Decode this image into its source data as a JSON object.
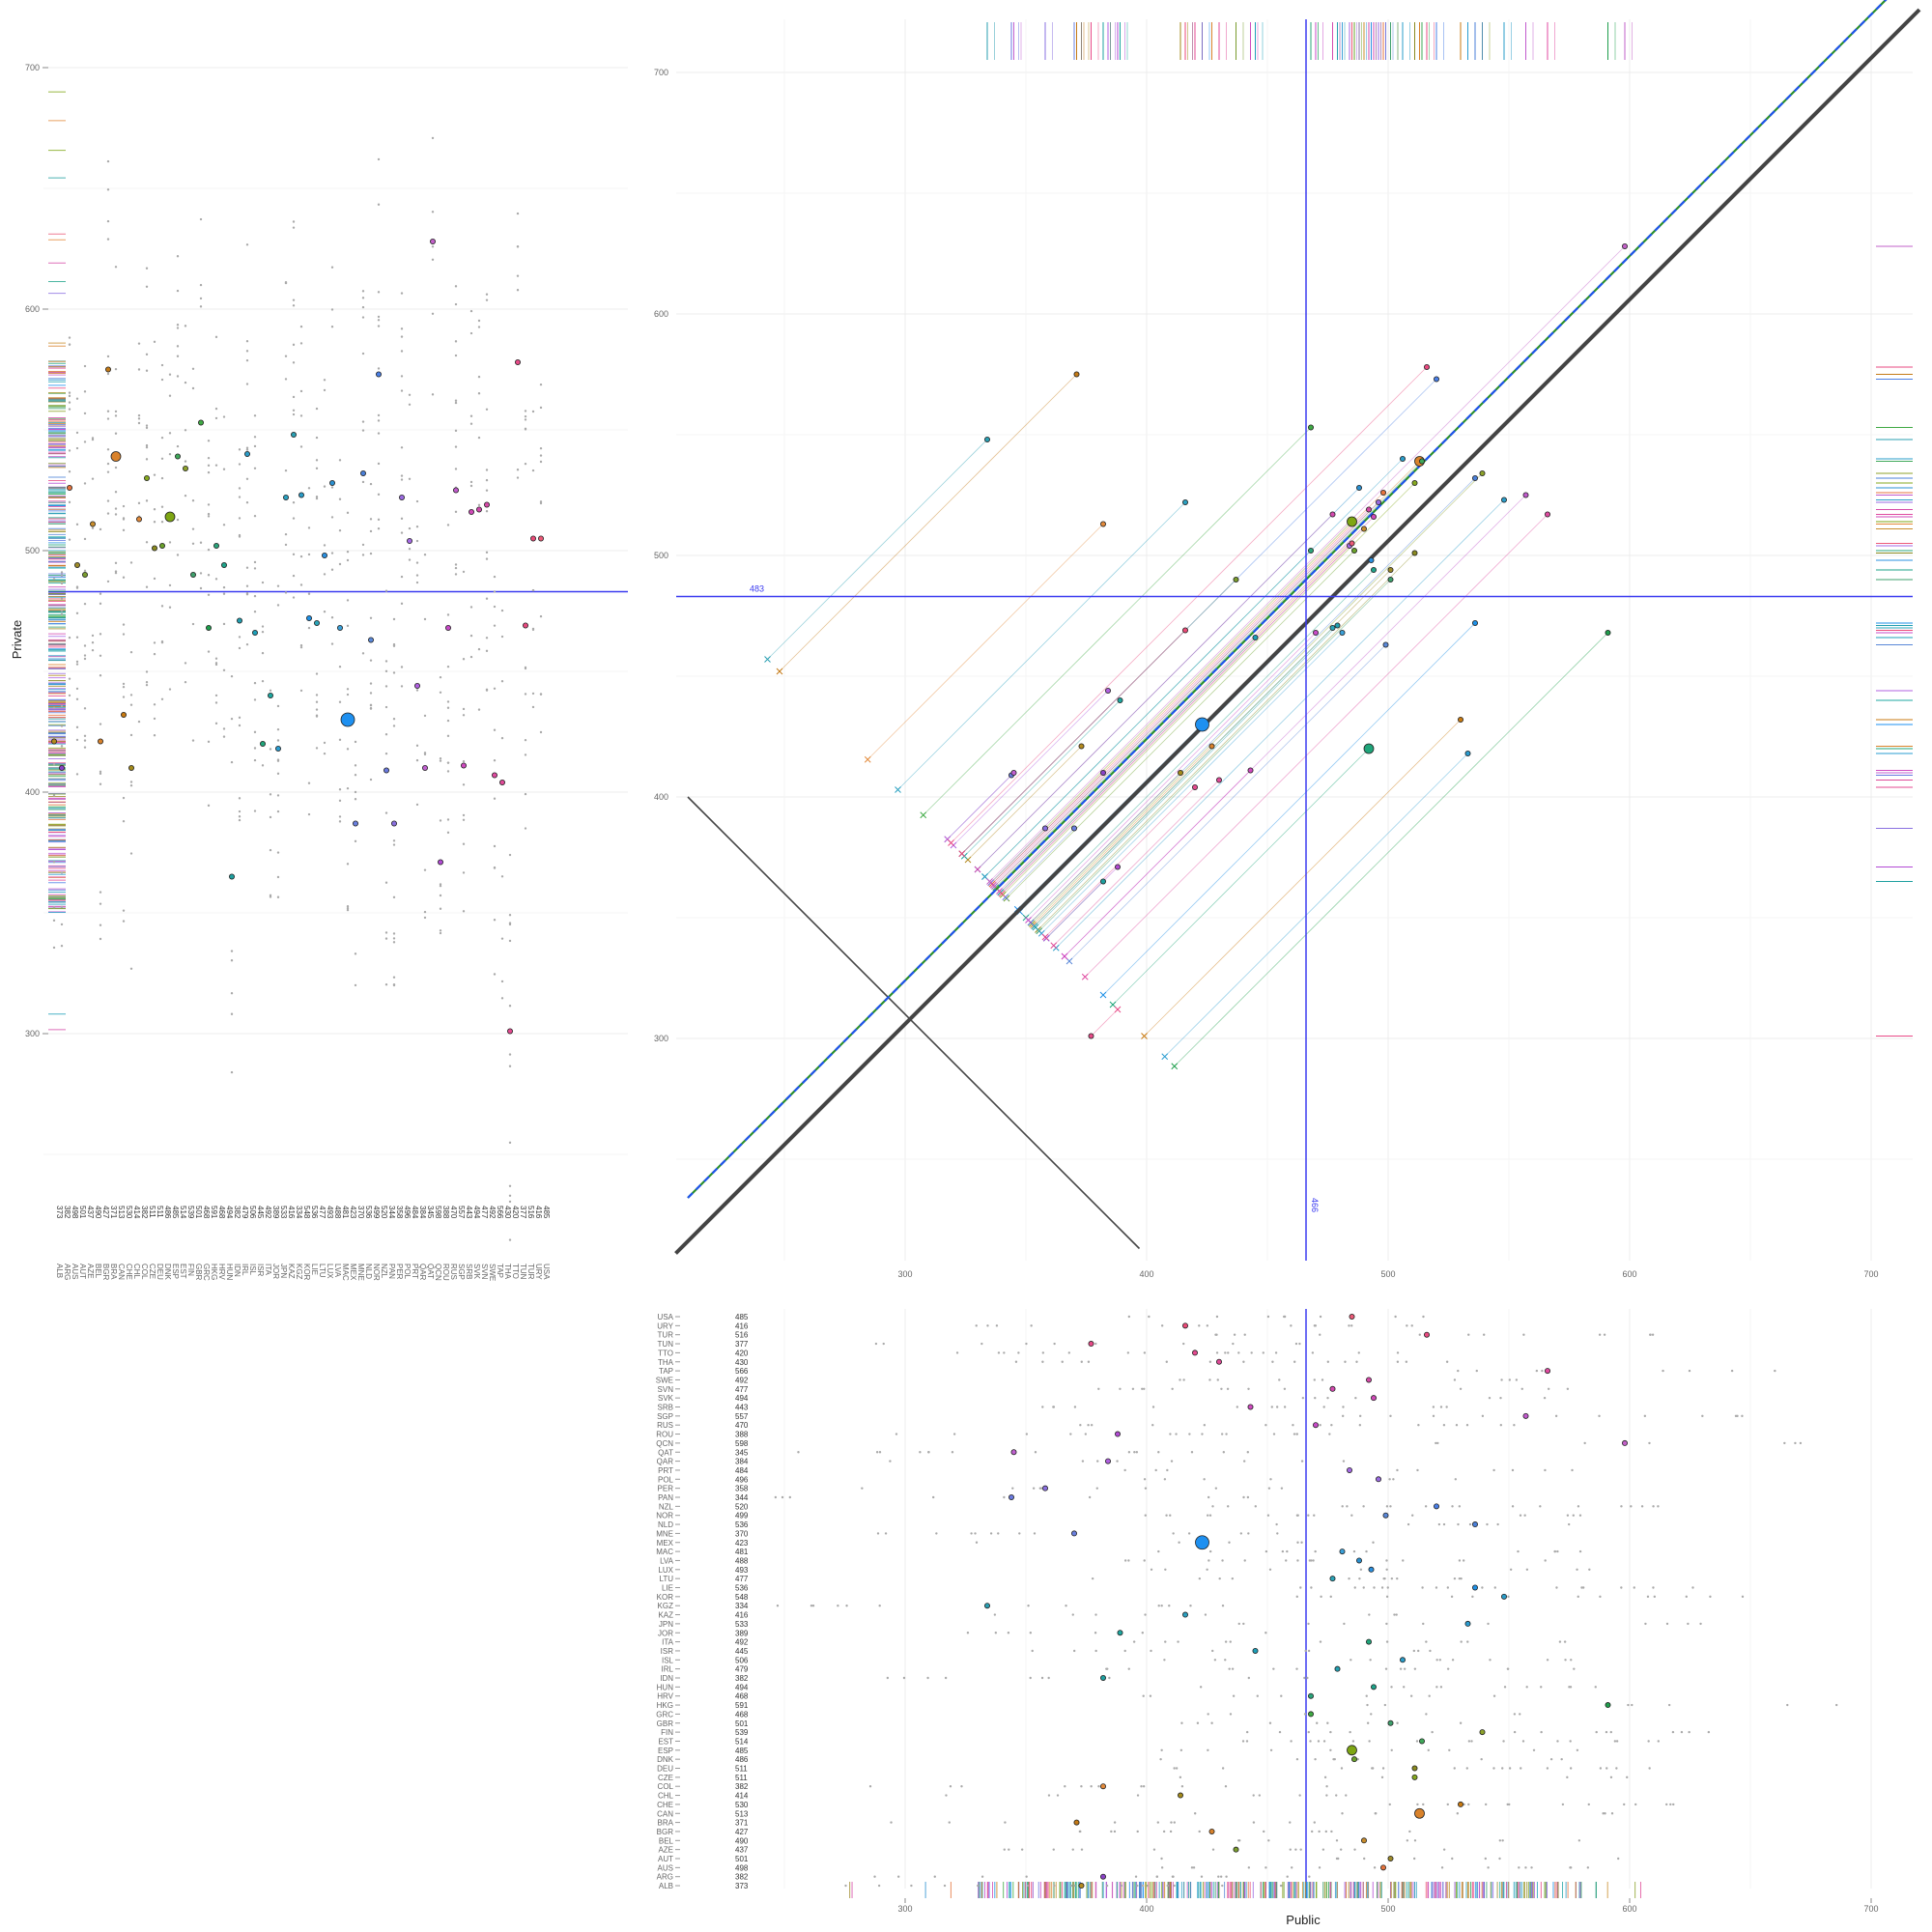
{
  "chart_data": [
    {
      "name": "left-panel",
      "type": "scatter",
      "ylabel": "Private",
      "ylim": [
        250,
        725
      ],
      "yticks": [
        300,
        400,
        500,
        600,
        700
      ],
      "reference_line": 483,
      "categories": [
        "ALB",
        "ARG",
        "AUS",
        "AUT",
        "AZE",
        "BEL",
        "BGR",
        "BRA",
        "CAN",
        "CHE",
        "CHL",
        "COL",
        "CZE",
        "DEU",
        "DNK",
        "ESP",
        "EST",
        "FIN",
        "GBR",
        "GRC",
        "HKG",
        "HRV",
        "HUN",
        "IDN",
        "IRL",
        "ISL",
        "ISR",
        "ITA",
        "JOR",
        "JPN",
        "KAZ",
        "KGZ",
        "KOR",
        "LIE",
        "LTU",
        "LUX",
        "LVA",
        "MAC",
        "MEX",
        "MNE",
        "NLD",
        "NOR",
        "NZL",
        "PAN",
        "PER",
        "POL",
        "PRT",
        "QAR",
        "QAT",
        "QCN",
        "ROU",
        "RUS",
        "SGP",
        "SRB",
        "SVK",
        "SVN",
        "SWE",
        "TAP",
        "THA",
        "TTO",
        "TUN",
        "TUR",
        "URY",
        "USA"
      ],
      "values": [
        421,
        410,
        526,
        494,
        490,
        511,
        421,
        575,
        539,
        432,
        410,
        513,
        530,
        501,
        502,
        514,
        539,
        534,
        490,
        553,
        468,
        502,
        494,
        365,
        471,
        540,
        466,
        420,
        440,
        418,
        522,
        548,
        523,
        472,
        470,
        498,
        528,
        468,
        430,
        387,
        532,
        463,
        573,
        409,
        387,
        522,
        504,
        444,
        410,
        628,
        371,
        468,
        525,
        411,
        516,
        517,
        519,
        407,
        404,
        301,
        578,
        469,
        505,
        505
      ],
      "public_labels": [
        "373",
        "382",
        "498",
        "501",
        "437",
        "490",
        "427",
        "371",
        "513",
        "530",
        "414",
        "382",
        "511",
        "511",
        "486",
        "485",
        "514",
        "539",
        "501",
        "468",
        "591",
        "468",
        "494",
        "382",
        "479",
        "506",
        "445",
        "492",
        "389",
        "533",
        "416",
        "334",
        "548",
        "536",
        "477",
        "493",
        "488",
        "481",
        "423",
        "370",
        "536",
        "499",
        "520",
        "344",
        "358",
        "496",
        "484",
        "384",
        "345",
        "598",
        "388",
        "470",
        "557",
        "443",
        "494",
        "477",
        "492",
        "566",
        "430",
        "420",
        "377",
        "516",
        "416",
        "485"
      ],
      "sizes": [
        1,
        1,
        1,
        1,
        1,
        1,
        1,
        1,
        3,
        1,
        1,
        1,
        1,
        1,
        1,
        3,
        1,
        1,
        1,
        1,
        1,
        1,
        1,
        1,
        1,
        1,
        1,
        1,
        1,
        1,
        1,
        1,
        1,
        1,
        1,
        1,
        1,
        1,
        5,
        1,
        1,
        1,
        1,
        1,
        1,
        1,
        1,
        1,
        1,
        1,
        1,
        1,
        1,
        1,
        1,
        1,
        1,
        1,
        1,
        1,
        1,
        1,
        1,
        1
      ],
      "colors": [
        "#b48a1e",
        "#8a42c6",
        "#e6733c",
        "#9e8b2a",
        "#7a9c2e",
        "#c98d2c",
        "#d9822b",
        "#c47a16",
        "#d9822b",
        "#c97a10",
        "#a38a1a",
        "#e38a3a",
        "#86a91f",
        "#8a8a20",
        "#6aa12b",
        "#7ea613",
        "#3fa95a",
        "#8da22a",
        "#3fa06c",
        "#3faa44",
        "#1e9e4c",
        "#2aa47b",
        "#1ea38a",
        "#1ea0a0",
        "#229fb0",
        "#2a9cc8",
        "#1d9fb8",
        "#1fa57a",
        "#1da7a0",
        "#2a9cd0",
        "#2aa0c0",
        "#2a9fb2",
        "#2a9cc8",
        "#1e90e6",
        "#2aa4b8",
        "#2a90e0",
        "#2a90d0",
        "#3aa0d8",
        "#1e90f0",
        "#6a80e0",
        "#4a7fd8",
        "#5a88d8",
        "#4a7fe6",
        "#6a7ae0",
        "#8a70e0",
        "#9a6ae0",
        "#a66ae6",
        "#b060e0",
        "#c060d0",
        "#c260c8",
        "#b24ad4",
        "#c84ac8",
        "#c25acd",
        "#d04ac0",
        "#d04ab8",
        "#d44ab0",
        "#d64aa8",
        "#e04aa0",
        "#e04a98",
        "#e44a90",
        "#e84a88",
        "#ea4a80",
        "#ec4a78",
        "#ec5a78"
      ]
    },
    {
      "name": "main-panel",
      "type": "scatter",
      "xlabel": "",
      "ylabel": "",
      "xlim": [
        250,
        725
      ],
      "ylim": [
        250,
        725
      ],
      "xticks": [
        300,
        400,
        500,
        600,
        700
      ],
      "yticks": [
        300,
        400,
        500,
        600,
        700
      ],
      "hline": 483,
      "hline_label": "483",
      "vline": 466,
      "vline_label": "466",
      "points": [
        {
          "x": 373,
          "y": 421,
          "s": 1
        },
        {
          "x": 382,
          "y": 410,
          "s": 1
        },
        {
          "x": 498,
          "y": 526,
          "s": 1
        },
        {
          "x": 501,
          "y": 494,
          "s": 1
        },
        {
          "x": 437,
          "y": 490,
          "s": 1
        },
        {
          "x": 490,
          "y": 511,
          "s": 1
        },
        {
          "x": 427,
          "y": 421,
          "s": 1
        },
        {
          "x": 371,
          "y": 575,
          "s": 1
        },
        {
          "x": 513,
          "y": 539,
          "s": 3
        },
        {
          "x": 530,
          "y": 432,
          "s": 1
        },
        {
          "x": 414,
          "y": 410,
          "s": 1
        },
        {
          "x": 382,
          "y": 513,
          "s": 1
        },
        {
          "x": 511,
          "y": 530,
          "s": 1
        },
        {
          "x": 511,
          "y": 501,
          "s": 1
        },
        {
          "x": 486,
          "y": 502,
          "s": 1
        },
        {
          "x": 485,
          "y": 514,
          "s": 3
        },
        {
          "x": 514,
          "y": 539,
          "s": 1
        },
        {
          "x": 539,
          "y": 534,
          "s": 1
        },
        {
          "x": 501,
          "y": 490,
          "s": 1
        },
        {
          "x": 468,
          "y": 553,
          "s": 1
        },
        {
          "x": 591,
          "y": 468,
          "s": 1
        },
        {
          "x": 468,
          "y": 502,
          "s": 1
        },
        {
          "x": 494,
          "y": 494,
          "s": 1
        },
        {
          "x": 382,
          "y": 365,
          "s": 1
        },
        {
          "x": 479,
          "y": 471,
          "s": 1
        },
        {
          "x": 506,
          "y": 540,
          "s": 1
        },
        {
          "x": 445,
          "y": 466,
          "s": 1
        },
        {
          "x": 492,
          "y": 420,
          "s": 3
        },
        {
          "x": 389,
          "y": 440,
          "s": 1
        },
        {
          "x": 533,
          "y": 418,
          "s": 1
        },
        {
          "x": 416,
          "y": 522,
          "s": 1
        },
        {
          "x": 334,
          "y": 548,
          "s": 1
        },
        {
          "x": 548,
          "y": 523,
          "s": 1
        },
        {
          "x": 536,
          "y": 472,
          "s": 1
        },
        {
          "x": 477,
          "y": 470,
          "s": 1
        },
        {
          "x": 493,
          "y": 498,
          "s": 1
        },
        {
          "x": 488,
          "y": 528,
          "s": 1
        },
        {
          "x": 481,
          "y": 468,
          "s": 1
        },
        {
          "x": 423,
          "y": 430,
          "s": 5
        },
        {
          "x": 370,
          "y": 387,
          "s": 1
        },
        {
          "x": 536,
          "y": 532,
          "s": 1
        },
        {
          "x": 499,
          "y": 463,
          "s": 1
        },
        {
          "x": 520,
          "y": 573,
          "s": 1
        },
        {
          "x": 344,
          "y": 409,
          "s": 1
        },
        {
          "x": 358,
          "y": 387,
          "s": 1
        },
        {
          "x": 496,
          "y": 522,
          "s": 1
        },
        {
          "x": 484,
          "y": 504,
          "s": 1
        },
        {
          "x": 384,
          "y": 444,
          "s": 1
        },
        {
          "x": 345,
          "y": 410,
          "s": 1
        },
        {
          "x": 598,
          "y": 628,
          "s": 1
        },
        {
          "x": 388,
          "y": 371,
          "s": 1
        },
        {
          "x": 470,
          "y": 468,
          "s": 1
        },
        {
          "x": 557,
          "y": 525,
          "s": 1
        },
        {
          "x": 443,
          "y": 411,
          "s": 1
        },
        {
          "x": 494,
          "y": 516,
          "s": 1
        },
        {
          "x": 477,
          "y": 517,
          "s": 1
        },
        {
          "x": 492,
          "y": 519,
          "s": 1
        },
        {
          "x": 566,
          "y": 517,
          "s": 1
        },
        {
          "x": 430,
          "y": 407,
          "s": 1
        },
        {
          "x": 420,
          "y": 404,
          "s": 1
        },
        {
          "x": 377,
          "y": 301,
          "s": 1
        },
        {
          "x": 516,
          "y": 578,
          "s": 1
        },
        {
          "x": 416,
          "y": 469,
          "s": 1
        },
        {
          "x": 485,
          "y": 505,
          "s": 1
        }
      ]
    },
    {
      "name": "bottom-panel",
      "type": "scatter",
      "xlabel": "Public",
      "xlim": [
        250,
        725
      ],
      "xticks": [
        300,
        400,
        500,
        600,
        700
      ],
      "reference_line": 466,
      "categories": [
        "USA",
        "URY",
        "TUR",
        "TUN",
        "TTO",
        "THA",
        "TAP",
        "SWE",
        "SVN",
        "SVK",
        "SRB",
        "SGP",
        "RUS",
        "ROU",
        "QCN",
        "QAT",
        "QAR",
        "PRT",
        "POL",
        "PER",
        "PAN",
        "NZL",
        "NOR",
        "NLD",
        "MNE",
        "MEX",
        "MAC",
        "LVA",
        "LUX",
        "LTU",
        "LIE",
        "KOR",
        "KGZ",
        "KAZ",
        "JPN",
        "JOR",
        "ITA",
        "ISR",
        "ISL",
        "IRL",
        "IDN",
        "HUN",
        "HRV",
        "HKG",
        "GRC",
        "GBR",
        "FIN",
        "EST",
        "ESP",
        "DNK",
        "DEU",
        "CZE",
        "COL",
        "CHL",
        "CHE",
        "CAN",
        "BRA",
        "BGR",
        "BEL",
        "AZE",
        "AUT",
        "AUS",
        "ARG",
        "ALB"
      ],
      "values": [
        485,
        416,
        516,
        377,
        420,
        430,
        566,
        492,
        477,
        494,
        443,
        557,
        470,
        388,
        598,
        345,
        384,
        484,
        496,
        358,
        344,
        520,
        499,
        536,
        370,
        423,
        481,
        488,
        493,
        477,
        536,
        548,
        334,
        416,
        533,
        389,
        492,
        445,
        506,
        479,
        382,
        494,
        468,
        591,
        468,
        501,
        539,
        514,
        485,
        486,
        511,
        511,
        382,
        414,
        530,
        513,
        371,
        427,
        490,
        437,
        501,
        498,
        382,
        373
      ],
      "value_labels": [
        "485",
        "416",
        "516",
        "377",
        "420",
        "430",
        "566",
        "492",
        "477",
        "494",
        "443",
        "557",
        "470",
        "388",
        "598",
        "345",
        "384",
        "484",
        "496",
        "358",
        "344",
        "520",
        "499",
        "536",
        "370",
        "423",
        "481",
        "488",
        "493",
        "477",
        "536",
        "548",
        "334",
        "416",
        "533",
        "389",
        "492",
        "445",
        "506",
        "479",
        "382",
        "494",
        "468",
        "591",
        "468",
        "501",
        "539",
        "514",
        "485",
        "486",
        "511",
        "511",
        "382",
        "414",
        "530",
        "513",
        "371",
        "427",
        "490",
        "437",
        "501",
        "498",
        "382",
        "373"
      ]
    }
  ]
}
